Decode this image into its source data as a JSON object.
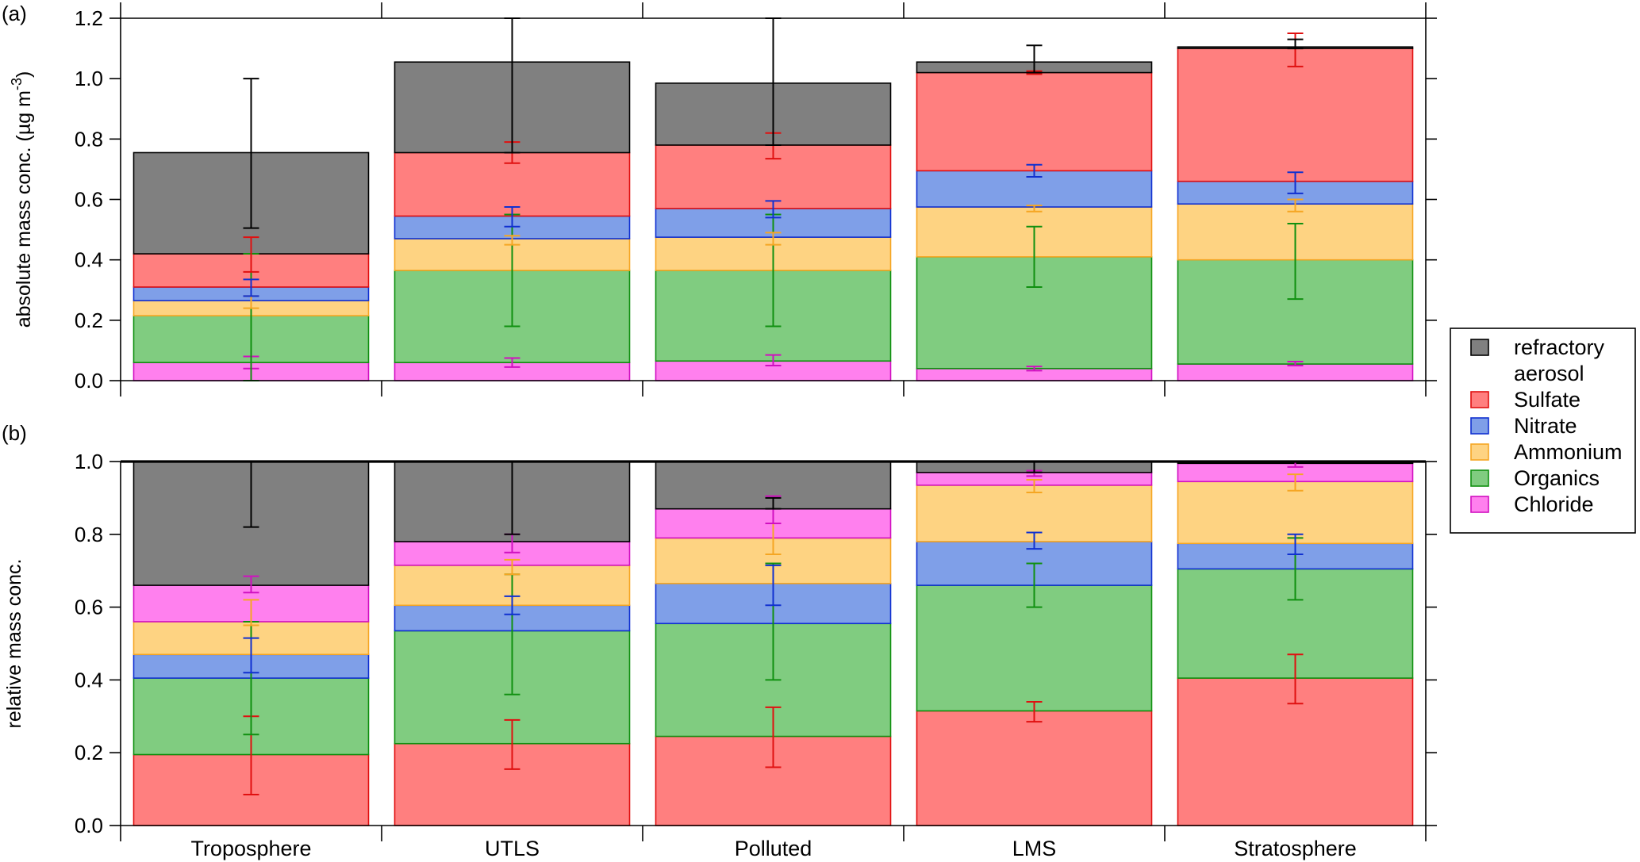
{
  "chart_data": {
    "type": "bar",
    "stacked": true,
    "categories": [
      "Troposphere",
      "UTLS",
      "Polluted",
      "LMS",
      "Stratosphere"
    ],
    "legend": {
      "placement": "right",
      "entries": [
        {
          "key": "refractory",
          "label_lines": [
            "refractory",
            "aerosol"
          ],
          "color": "#808080",
          "edge": "#000000"
        },
        {
          "key": "sulfate",
          "label_lines": [
            "Sulfate"
          ],
          "color": "#ff7f7f",
          "edge": "#e01010"
        },
        {
          "key": "nitrate",
          "label_lines": [
            "Nitrate"
          ],
          "color": "#7f9fe8",
          "edge": "#1030d0"
        },
        {
          "key": "ammonium",
          "label_lines": [
            "Ammonium"
          ],
          "color": "#fed382",
          "edge": "#f5a623"
        },
        {
          "key": "organics",
          "label_lines": [
            "Organics"
          ],
          "color": "#80cc80",
          "edge": "#109010"
        },
        {
          "key": "chloride",
          "label_lines": [
            "Chloride"
          ],
          "color": "#ff80ee",
          "edge": "#d010c0"
        }
      ]
    },
    "panels": [
      {
        "label": "(a)",
        "ylabel": "absolute mass conc. (µg m",
        "ylabel_sup": "-3",
        "ylabel_end": ")",
        "ylim": [
          0,
          1.2
        ],
        "yticks": [
          "0.0",
          "0.2",
          "0.4",
          "0.6",
          "0.8",
          "1.0",
          "1.2"
        ],
        "stack_order": [
          "chloride",
          "organics",
          "ammonium",
          "nitrate",
          "sulfate",
          "refractory"
        ],
        "series": [
          {
            "key": "chloride",
            "values": [
              0.06,
              0.06,
              0.065,
              0.04,
              0.055
            ],
            "err": [
              [
                0.04,
                0.08
              ],
              [
                0.045,
                0.075
              ],
              [
                0.05,
                0.085
              ],
              [
                0.033,
                0.047
              ],
              [
                0.05,
                0.063
              ]
            ]
          },
          {
            "key": "organics",
            "values": [
              0.155,
              0.305,
              0.3,
              0.37,
              0.345
            ],
            "err": [
              [
                0.0,
                0.42
              ],
              [
                0.18,
                0.55
              ],
              [
                0.18,
                0.55
              ],
              [
                0.31,
                0.51
              ],
              [
                0.27,
                0.52
              ]
            ]
          },
          {
            "key": "ammonium",
            "values": [
              0.05,
              0.105,
              0.11,
              0.165,
              0.185
            ],
            "err": [
              [
                0.24,
                0.28
              ],
              [
                0.45,
                0.48
              ],
              [
                0.45,
                0.49
              ],
              [
                0.56,
                0.58
              ],
              [
                0.56,
                0.6
              ]
            ]
          },
          {
            "key": "nitrate",
            "values": [
              0.045,
              0.075,
              0.095,
              0.12,
              0.075
            ],
            "err": [
              [
                0.28,
                0.335
              ],
              [
                0.51,
                0.575
              ],
              [
                0.54,
                0.595
              ],
              [
                0.675,
                0.715
              ],
              [
                0.62,
                0.69
              ]
            ]
          },
          {
            "key": "sulfate",
            "values": [
              0.11,
              0.21,
              0.21,
              0.325,
              0.44
            ],
            "err": [
              [
                0.36,
                0.475
              ],
              [
                0.72,
                0.79
              ],
              [
                0.735,
                0.82
              ],
              [
                1.015,
                1.025
              ],
              [
                1.04,
                1.15
              ]
            ]
          },
          {
            "key": "refractory",
            "values": [
              0.335,
              0.3,
              0.205,
              0.035,
              0.005
            ],
            "err": [
              [
                0.505,
                1.0
              ],
              [
                0.755,
                1.2
              ],
              [
                0.78,
                1.2
              ],
              [
                1.02,
                1.11
              ],
              [
                1.1,
                1.13
              ]
            ]
          }
        ]
      },
      {
        "label": "(b)",
        "ylabel": "relative mass conc.",
        "ylim": [
          0,
          1.0
        ],
        "yticks": [
          "0.0",
          "0.2",
          "0.4",
          "0.6",
          "0.8",
          "1.0"
        ],
        "stack_order": [
          "sulfate",
          "organics",
          "nitrate",
          "ammonium",
          "chloride",
          "refractory"
        ],
        "series": [
          {
            "key": "sulfate",
            "values": [
              0.195,
              0.225,
              0.245,
              0.315,
              0.405
            ],
            "err": [
              [
                0.085,
                0.3
              ],
              [
                0.155,
                0.29
              ],
              [
                0.16,
                0.325
              ],
              [
                0.285,
                0.34
              ],
              [
                0.335,
                0.47
              ]
            ]
          },
          {
            "key": "organics",
            "values": [
              0.21,
              0.31,
              0.31,
              0.345,
              0.3
            ],
            "err": [
              [
                0.25,
                0.56
              ],
              [
                0.36,
                0.69
              ],
              [
                0.4,
                0.72
              ],
              [
                0.6,
                0.72
              ],
              [
                0.62,
                0.79
              ]
            ]
          },
          {
            "key": "nitrate",
            "values": [
              0.065,
              0.07,
              0.11,
              0.12,
              0.07
            ],
            "err": [
              [
                0.42,
                0.515
              ],
              [
                0.58,
                0.63
              ],
              [
                0.605,
                0.715
              ],
              [
                0.76,
                0.805
              ],
              [
                0.745,
                0.8
              ]
            ]
          },
          {
            "key": "ammonium",
            "values": [
              0.09,
              0.11,
              0.125,
              0.155,
              0.17
            ],
            "err": [
              [
                0.55,
                0.62
              ],
              [
                0.69,
                0.73
              ],
              [
                0.745,
                0.83
              ],
              [
                0.915,
                0.95
              ],
              [
                0.92,
                0.965
              ]
            ]
          },
          {
            "key": "chloride",
            "values": [
              0.1,
              0.065,
              0.08,
              0.035,
              0.05
            ],
            "err": [
              [
                0.64,
                0.685
              ],
              [
                0.75,
                0.8
              ],
              [
                0.83,
                0.905
              ],
              [
                0.96,
                0.975
              ],
              [
                0.985,
                1.0
              ]
            ]
          },
          {
            "key": "refractory",
            "values": [
              0.34,
              0.22,
              0.13,
              0.03,
              0.005
            ],
            "err": [
              [
                0.82,
                1.0
              ],
              [
                0.8,
                1.0
              ],
              [
                0.87,
                0.9
              ],
              [
                0.97,
                1.0
              ],
              [
                1.0,
                1.0
              ]
            ]
          }
        ]
      }
    ]
  }
}
